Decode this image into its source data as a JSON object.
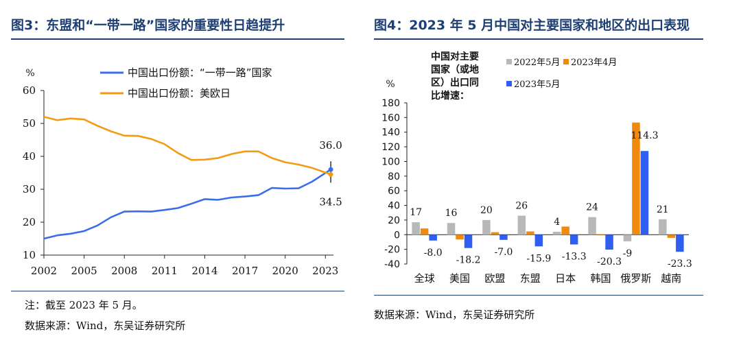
{
  "colors": {
    "title": "#1d3f73",
    "blue": "#3a6ee8",
    "orange": "#f39c12",
    "gray": "#b8b8b8",
    "bar_orange": "#f08a0c",
    "bar_blue": "#2f5ff0"
  },
  "left": {
    "title": "图3：东盟和“一带一路”国家的重要性日趋提升",
    "note": "注：截至 2023 年 5 月。",
    "source": "数据来源：Wind，东吴证券研究所"
  },
  "right": {
    "title": "图4：2023 年 5 月中国对主要国家和地区的出口表现",
    "source": "数据来源：Wind，东吴证券研究所"
  },
  "chart_data": [
    {
      "type": "line",
      "ylabel": "%",
      "ylim": [
        10,
        60
      ],
      "yticks": [
        10,
        20,
        30,
        40,
        50,
        60
      ],
      "xlim": [
        2002,
        2023.6
      ],
      "xticks": [
        2002,
        2005,
        2008,
        2011,
        2014,
        2017,
        2020,
        2023
      ],
      "grid": false,
      "legend_position": "top",
      "series": [
        {
          "name": "中国出口份额：“一带一路”国家",
          "color": "#3a6ee8",
          "x": [
            2002,
            2003,
            2004,
            2005,
            2006,
            2007,
            2008,
            2009,
            2010,
            2011,
            2012,
            2013,
            2014,
            2015,
            2016,
            2017,
            2018,
            2019,
            2020,
            2021,
            2022,
            2023.4
          ],
          "y": [
            15.0,
            16.0,
            16.5,
            17.3,
            19.0,
            21.5,
            23.2,
            23.3,
            23.2,
            23.7,
            24.3,
            25.6,
            27.0,
            26.8,
            27.5,
            27.8,
            28.2,
            30.4,
            30.2,
            30.3,
            32.3,
            36.0
          ]
        },
        {
          "name": "中国出口份额：美欧日",
          "color": "#f39c12",
          "x": [
            2002,
            2003,
            2004,
            2005,
            2006,
            2007,
            2008,
            2009,
            2010,
            2011,
            2012,
            2013,
            2014,
            2015,
            2016,
            2017,
            2018,
            2019,
            2020,
            2021,
            2022,
            2023.4
          ],
          "y": [
            52.0,
            51.0,
            51.5,
            51.2,
            49.3,
            47.6,
            46.3,
            46.2,
            45.3,
            43.7,
            41.0,
            38.9,
            39.0,
            39.5,
            40.7,
            41.5,
            41.5,
            39.5,
            38.2,
            37.5,
            36.5,
            34.5
          ]
        }
      ],
      "annotations": [
        "36.0",
        "34.5"
      ]
    },
    {
      "type": "bar",
      "ylabel": "%",
      "ylim": [
        -40,
        180
      ],
      "yticks": [
        -40,
        -20,
        0,
        20,
        40,
        60,
        80,
        100,
        120,
        140,
        160,
        180
      ],
      "grid": false,
      "legend_position": "top",
      "legend_title": "中国对主要国家（或地区）出口同比增速：",
      "categories": [
        "全球",
        "美国",
        "欧盟",
        "东盟",
        "日本",
        "韩国",
        "俄罗斯",
        "越南"
      ],
      "series": [
        {
          "name": "2022年5月",
          "color": "#b8b8b8",
          "values": [
            17,
            16,
            20,
            26,
            4,
            24,
            -9,
            21
          ]
        },
        {
          "name": "2023年4月",
          "color": "#f08a0c",
          "values": [
            8.5,
            -6.5,
            3.4,
            4.5,
            11.1,
            -0.5,
            153.1,
            -4.3
          ]
        },
        {
          "name": "2023年5月",
          "color": "#2f5ff0",
          "values": [
            -8.0,
            -18.2,
            -7.0,
            -15.9,
            -13.3,
            -20.3,
            114.3,
            -23.3
          ]
        }
      ],
      "data_labels": {
        "gray": [
          "17",
          "16",
          "20",
          "26",
          "4",
          "24",
          "-9",
          "21"
        ],
        "blue": [
          "-8.0",
          "-18.2",
          "-7.0",
          "-15.9",
          "-13.3",
          "-20.3",
          "114.3",
          "-23.3"
        ]
      }
    }
  ]
}
